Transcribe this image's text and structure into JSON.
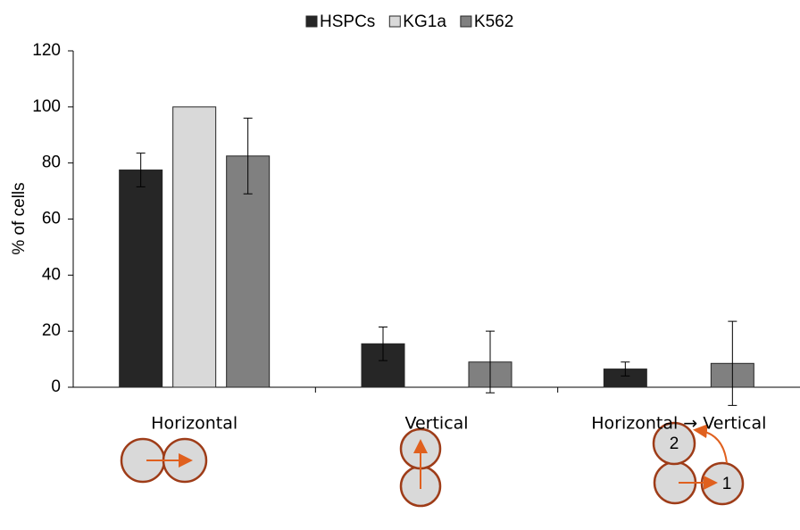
{
  "chart_data": {
    "type": "bar",
    "y_label": "% of cells",
    "categories": [
      "Horizontal",
      "Vertical",
      "Horizontal → Vertical"
    ],
    "series": [
      {
        "name": "HSPCs",
        "color": "#262626",
        "values": [
          77.5,
          15.5,
          6.5
        ],
        "errors": [
          6,
          6,
          2.5
        ]
      },
      {
        "name": "KG1a",
        "color": "#d9d9d9",
        "values": [
          100,
          0,
          0
        ],
        "errors": [
          0,
          0,
          0
        ]
      },
      {
        "name": "K562",
        "color": "#808080",
        "values": [
          82.5,
          9,
          8.5
        ],
        "errors": [
          13.5,
          11,
          15
        ]
      }
    ],
    "ylim": [
      0,
      120
    ],
    "yticks": [
      0,
      20,
      40,
      60,
      80,
      100,
      120
    ],
    "legend": "top"
  },
  "diagram_labels": [
    "2",
    "1"
  ]
}
